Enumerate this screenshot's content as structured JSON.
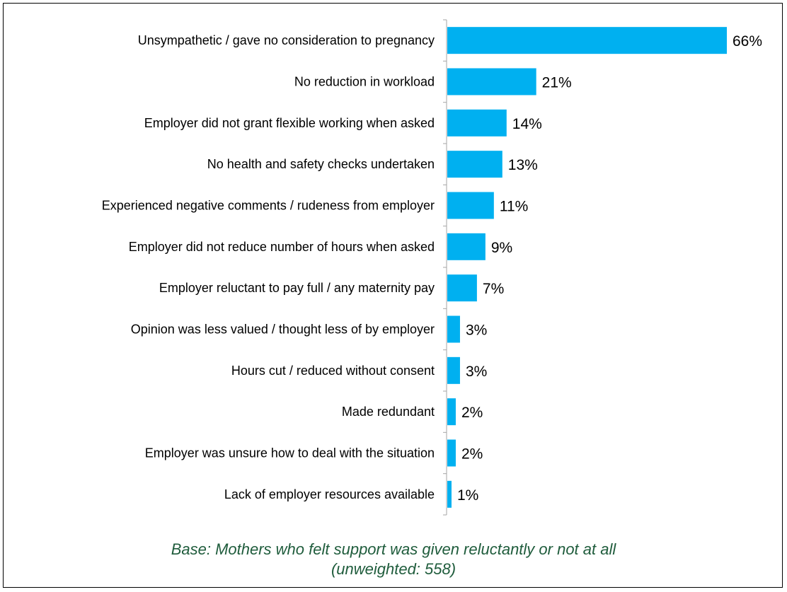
{
  "chart_data": {
    "type": "bar",
    "orientation": "horizontal",
    "categories": [
      "Unsympathetic / gave no consideration to pregnancy",
      "No reduction in workload",
      "Employer did not grant flexible working when asked",
      "No health and safety checks undertaken",
      "Experienced negative comments / rudeness from employer",
      "Employer did not reduce number of hours when asked",
      "Employer reluctant to pay full / any maternity pay",
      "Opinion was less valued / thought less of by employer",
      "Hours cut / reduced without consent",
      "Made redundant",
      "Employer was unsure how to deal with the situation",
      "Lack of employer resources available"
    ],
    "values": [
      66,
      21,
      14,
      13,
      11,
      9,
      7,
      3,
      3,
      2,
      2,
      1
    ],
    "value_labels": [
      "66%",
      "21%",
      "14%",
      "13%",
      "11%",
      "9%",
      "7%",
      "3%",
      "3%",
      "2%",
      "2%",
      "1%"
    ],
    "xlim": [
      0,
      66
    ],
    "grid": false,
    "bar_color": "#00b0f0"
  },
  "footnote": {
    "line1": "Base: Mothers who felt support was given reluctantly or not at all",
    "line2": "(unweighted: 558)",
    "color": "#1f5c3c"
  }
}
